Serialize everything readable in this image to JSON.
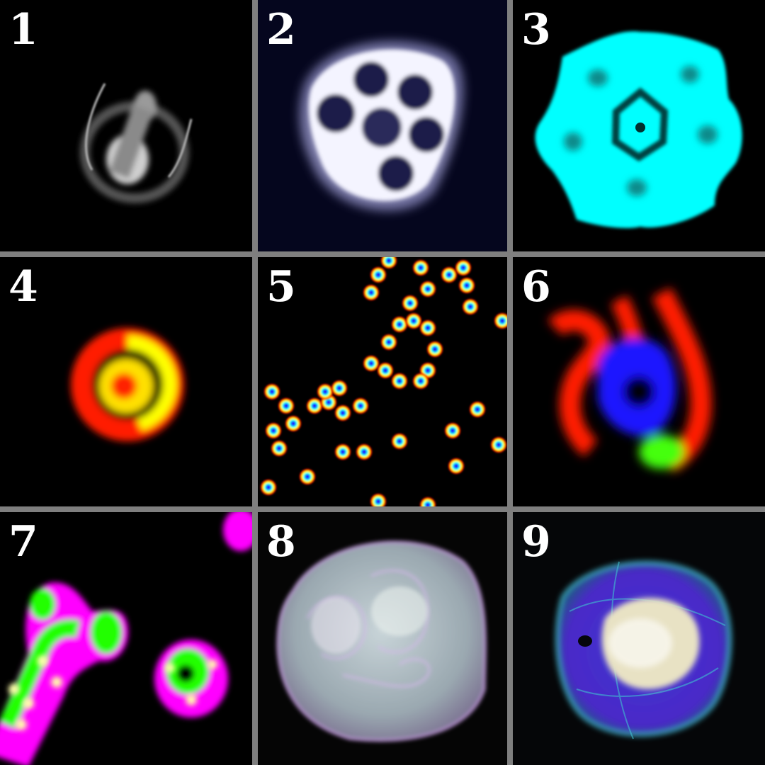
{
  "panels": [
    {
      "label": "1"
    },
    {
      "label": "2"
    },
    {
      "label": "3"
    },
    {
      "label": "4"
    },
    {
      "label": "5"
    },
    {
      "label": "6"
    },
    {
      "label": "7"
    },
    {
      "label": "8"
    },
    {
      "label": "9"
    }
  ],
  "colors": {
    "grid_border": "#7f7f7f",
    "background": "#000000",
    "label": "#ffffff",
    "cyan": "#00ffff",
    "red": "#ff1a00",
    "yellow": "#ffff00",
    "blue": "#1a14ff",
    "green": "#33ff00",
    "magenta": "#ff00ff"
  }
}
